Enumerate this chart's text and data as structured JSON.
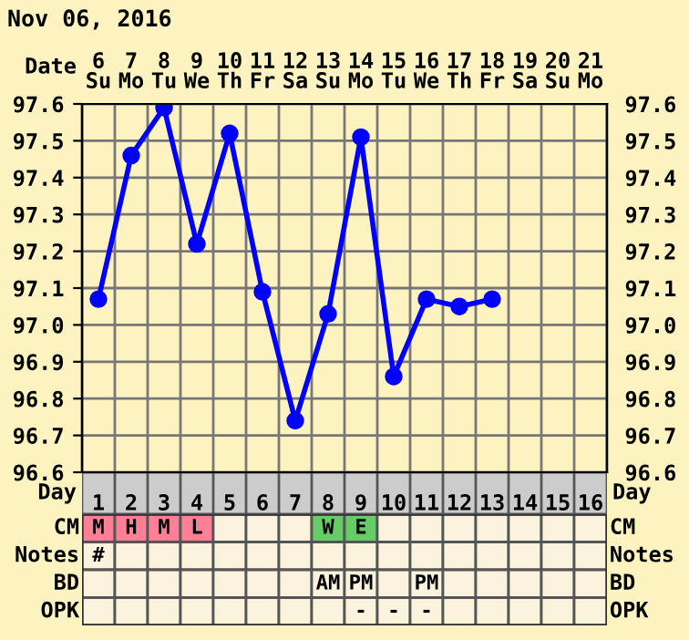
{
  "chart_data": [
    {
      "type": "line",
      "title": "Nov 06, 2016",
      "xlabel": "Date",
      "x2label": "Day",
      "categories": [
        "6\nSu",
        "7\nMo",
        "8\nTu",
        "9\nWe",
        "10\nTh",
        "11\nFr",
        "12\nSa",
        "13\nSu",
        "14\nMo",
        "15\nTu",
        "16\nWe",
        "17\nTh",
        "18\nFr",
        "19\nSa",
        "20\nSu",
        "21\nMo"
      ],
      "x2lim": [
        0.5,
        16.5
      ],
      "x2ticks": [
        1,
        2,
        3,
        4,
        5,
        6,
        7,
        8,
        9,
        10,
        11,
        12,
        13,
        14,
        15,
        16
      ],
      "series": [
        {
          "color": "#0000ff",
          "values": [
            97.07,
            97.46,
            97.59,
            97.22,
            97.52,
            97.09,
            96.74,
            97.03,
            97.51,
            96.86,
            97.07,
            97.05,
            97.07,
            null,
            null,
            null
          ]
        }
      ],
      "ylim": [
        96.6,
        97.6
      ],
      "yticks": [
        96.6,
        96.7,
        96.8,
        96.9,
        {
          "value": 97.0,
          "label": "97.0"
        },
        97.1,
        97.2,
        97.3,
        97.4,
        97.5,
        97.6
      ],
      "y2lim": [
        96.6,
        97.6
      ],
      "y2ticks": [
        96.6,
        96.7,
        96.8,
        96.9,
        {
          "value": 97.0,
          "label": "97.0"
        },
        97.1,
        97.2,
        97.3,
        97.4,
        97.5,
        97.6
      ],
      "grid": true,
      "marker": "circle",
      "line_style": "solid"
    },
    {
      "type": "other",
      "y_categories": [
        "CM",
        "Notes",
        "BD",
        "OPK"
      ],
      "cell_labels": [
        [
          "M",
          "H",
          "M",
          "L",
          null,
          null,
          null,
          "W",
          "E",
          null,
          null,
          null,
          null,
          null,
          null,
          null
        ],
        [
          "#",
          null,
          null,
          null,
          null,
          null,
          null,
          null,
          null,
          null,
          null,
          null,
          null,
          null,
          null,
          null
        ],
        [
          null,
          null,
          null,
          null,
          null,
          null,
          null,
          "AM",
          "PM",
          null,
          "PM",
          null,
          null,
          null,
          null,
          null
        ],
        [
          null,
          null,
          null,
          null,
          null,
          null,
          null,
          null,
          "-",
          "-",
          "-",
          null,
          null,
          null,
          null,
          null
        ]
      ],
      "colors": [
        [
          "#ff8096",
          "#ff8096",
          "#ff8096",
          "#ff8096",
          null,
          null,
          null,
          "#66cc66",
          "#66cc66",
          null,
          null,
          null,
          null,
          null,
          null,
          null
        ],
        [
          null,
          null,
          null,
          null,
          null,
          null,
          null,
          null,
          null,
          null,
          null,
          null,
          null,
          null,
          null,
          null
        ],
        [
          null,
          null,
          null,
          null,
          null,
          null,
          null,
          null,
          null,
          null,
          null,
          null,
          null,
          null,
          null,
          null
        ],
        [
          null,
          null,
          null,
          null,
          null,
          null,
          null,
          null,
          null,
          null,
          null,
          null,
          null,
          null,
          null,
          null
        ]
      ]
    }
  ]
}
